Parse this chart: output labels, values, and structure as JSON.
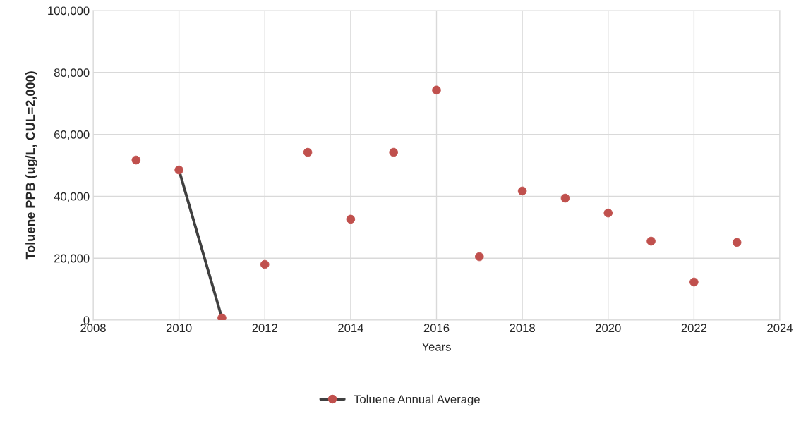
{
  "chart_data": {
    "type": "scatter",
    "xlabel": "Years",
    "ylabel": "Toluene PPB (ug/L, CUL=2,000)",
    "series": [
      {
        "name": "Toluene Annual Average",
        "marker": "circle",
        "color": "#c0504d",
        "x": [
          2009,
          2010,
          2011,
          2012,
          2013,
          2014,
          2015,
          2016,
          2017,
          2018,
          2019,
          2020,
          2021,
          2022,
          2023
        ],
        "values": [
          51700,
          48500,
          700,
          18000,
          54200,
          32600,
          54200,
          74300,
          20500,
          41700,
          39400,
          34600,
          25500,
          12300,
          25100
        ]
      },
      {
        "type": "line",
        "marker": "none",
        "color": "#404040",
        "x": [
          2010,
          2011
        ],
        "values": [
          48500,
          700
        ]
      }
    ],
    "xlim": [
      2008,
      2024
    ],
    "xticks": [
      2008,
      2010,
      2012,
      2014,
      2016,
      2018,
      2020,
      2022,
      2024
    ],
    "ylim": [
      0,
      100000
    ],
    "yticks": [
      {
        "value": 0,
        "label": "0"
      },
      {
        "value": 20000,
        "label": "20,000"
      },
      {
        "value": 40000,
        "label": "40,000"
      },
      {
        "value": 60000,
        "label": "60,000"
      },
      {
        "value": 80000,
        "label": "80,000"
      },
      {
        "value": 100000,
        "label": "100,000"
      }
    ],
    "grid": true,
    "legend": "bottom"
  }
}
